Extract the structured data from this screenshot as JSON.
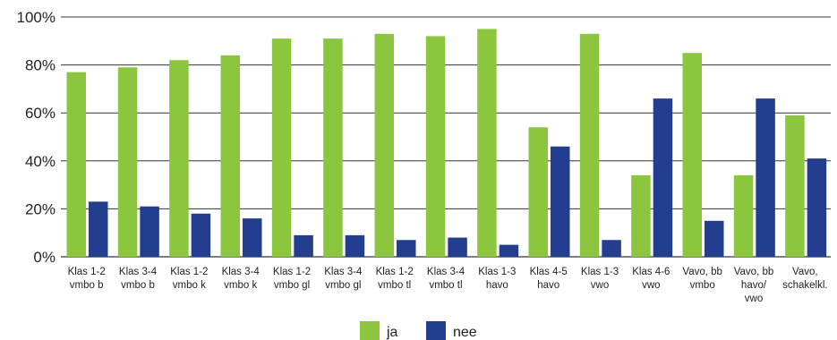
{
  "chart_data": {
    "type": "bar",
    "categories": [
      [
        "Klas 1-2",
        "vmbo b"
      ],
      [
        "Klas 3-4",
        "vmbo b"
      ],
      [
        "Klas 1-2",
        "vmbo k"
      ],
      [
        "Klas 3-4",
        "vmbo k"
      ],
      [
        "Klas 1-2",
        "vmbo gl"
      ],
      [
        "Klas 3-4",
        "vmbo gl"
      ],
      [
        "Klas 1-2",
        "vmbo tl"
      ],
      [
        "Klas 3-4",
        "vmbo tl"
      ],
      [
        "Klas 1-3",
        "havo"
      ],
      [
        "Klas 4-5",
        "havo"
      ],
      [
        "Klas 1-3",
        "vwo"
      ],
      [
        "Klas 4-6",
        "vwo"
      ],
      [
        "Vavo, bb",
        "vmbo"
      ],
      [
        "Vavo, bb",
        "havo/",
        "vwo"
      ],
      [
        "Vavo,",
        "schakelkl."
      ]
    ],
    "series": [
      {
        "name": "ja",
        "color": "#8cc63f",
        "values": [
          77,
          79,
          82,
          84,
          91,
          91,
          93,
          92,
          95,
          54,
          93,
          34,
          85,
          34,
          59
        ]
      },
      {
        "name": "nee",
        "color": "#233d8f",
        "values": [
          23,
          21,
          18,
          16,
          9,
          9,
          7,
          8,
          5,
          46,
          7,
          66,
          15,
          66,
          41
        ]
      }
    ],
    "ylim": [
      0,
      100
    ],
    "yticks": [
      "0%",
      "20%",
      "40%",
      "60%",
      "80%",
      "100%"
    ],
    "grid": true,
    "legend_position": "bottom-center"
  }
}
